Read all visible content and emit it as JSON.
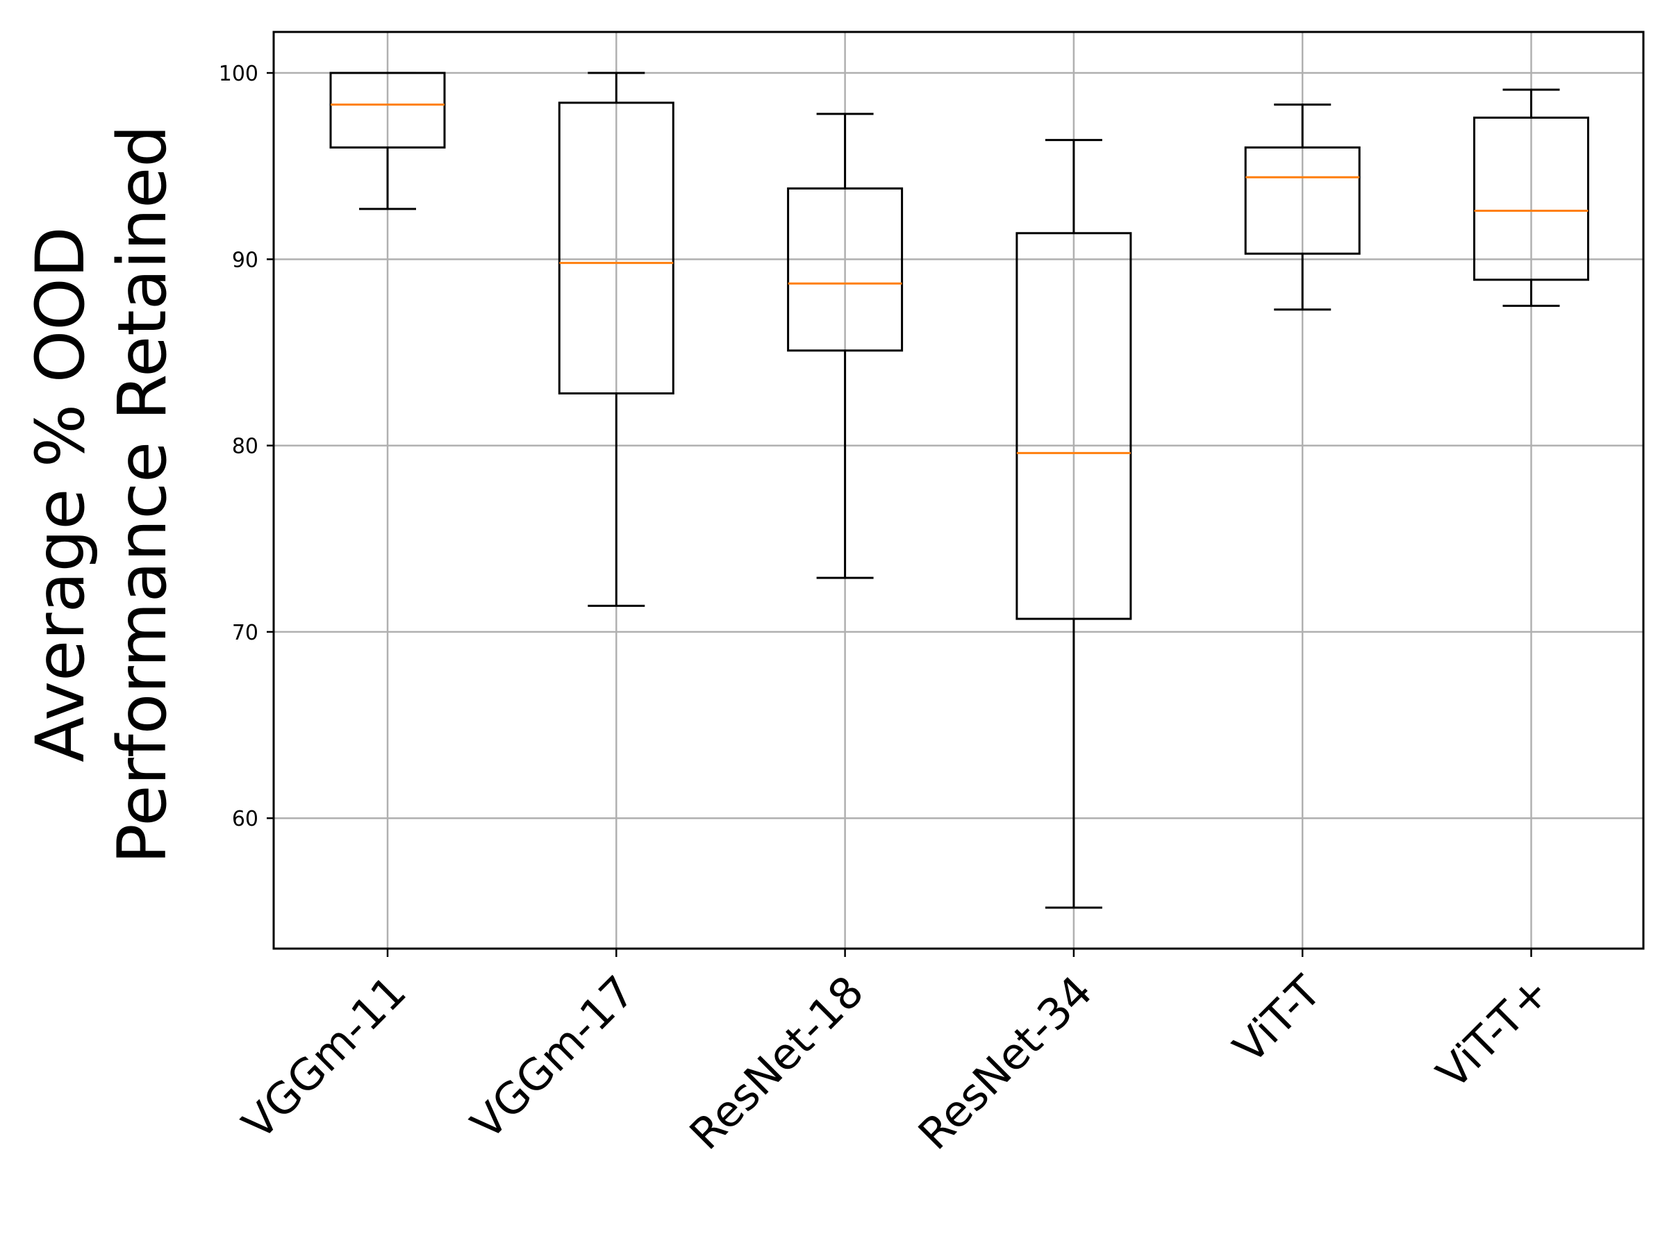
{
  "chart_data": {
    "type": "box",
    "title": "",
    "xlabel": "",
    "ylabel_lines": [
      "Average % OOD",
      "Performance Retained"
    ],
    "ylim": [
      53,
      102.2
    ],
    "yticks": [
      60,
      70,
      80,
      90,
      100
    ],
    "grid": true,
    "categories": [
      "VGGm-11",
      "VGGm-17",
      "ResNet-18",
      "ResNet-34",
      "ViT-T",
      "ViT-T+"
    ],
    "boxes": [
      {
        "name": "VGGm-11",
        "whisker_low": 92.7,
        "q1": 96.0,
        "median": 98.3,
        "q3": 100.0,
        "whisker_high": 100.0
      },
      {
        "name": "VGGm-17",
        "whisker_low": 71.4,
        "q1": 82.8,
        "median": 89.8,
        "q3": 98.4,
        "whisker_high": 100.0
      },
      {
        "name": "ResNet-18",
        "whisker_low": 72.9,
        "q1": 85.1,
        "median": 88.7,
        "q3": 93.8,
        "whisker_high": 97.8
      },
      {
        "name": "ResNet-34",
        "whisker_low": 55.2,
        "q1": 70.7,
        "median": 79.6,
        "q3": 91.4,
        "whisker_high": 96.4
      },
      {
        "name": "ViT-T",
        "whisker_low": 87.3,
        "q1": 90.3,
        "median": 94.4,
        "q3": 96.0,
        "whisker_high": 98.3
      },
      {
        "name": "ViT-T+",
        "whisker_low": 87.5,
        "q1": 88.9,
        "median": 92.6,
        "q3": 97.6,
        "whisker_high": 99.1
      }
    ],
    "colors": {
      "box": "#000000",
      "median": "#ff7f0e",
      "grid": "#b0b0b0"
    }
  }
}
